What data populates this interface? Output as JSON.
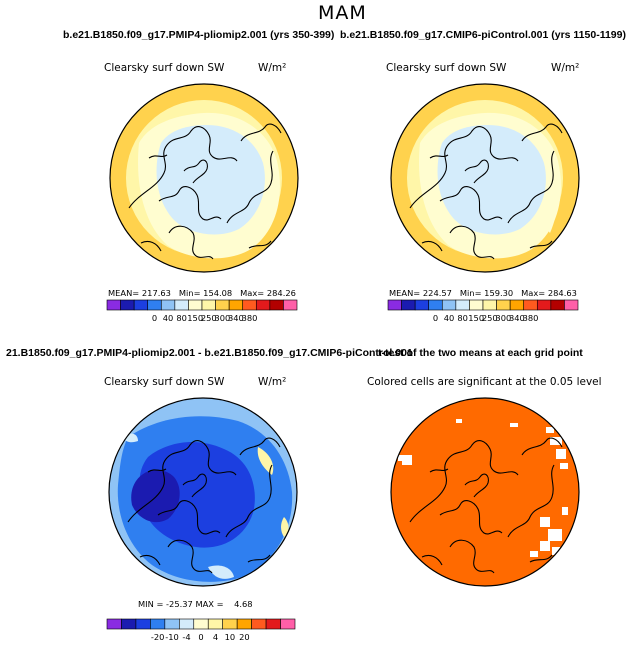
{
  "page": {
    "title": "MAM",
    "panel_titles": {
      "top_left": "b.e21.B1850.f09_g17.PMIP4-pliomip2.001 (yrs 350-399)",
      "top_right": "b.e21.B1850.f09_g17.CMIP6-piControl.001 (yrs 1150-1199)",
      "bottom_left": "21.B1850.f09_g17.PMIP4-pliomip2.001 - b.e21.B1850.f09_g17.CMIP6-piControl.001",
      "bottom_right": "t-test of the two means at each grid point"
    }
  },
  "chart_data": [
    {
      "id": "pliomip2",
      "type": "heatmap",
      "projection": "north polar stereographic",
      "title": "b.e21.B1850.f09_g17.PMIP4-pliomip2.001 (yrs 350-399)",
      "variable": "Clearsky surf down SW",
      "units": "W/m²",
      "stats": {
        "mean_label": "MEAN=",
        "mean": "217.63",
        "min_label": "Min=",
        "min": "154.08",
        "max_label": "Max=",
        "max": "284.26"
      },
      "colorbar": {
        "ticks": [
          "0",
          "40",
          "80",
          "150",
          "250",
          "300",
          "340",
          "380"
        ],
        "colors": [
          "#8a2be2",
          "#1b1bb0",
          "#1c3fe0",
          "#2f7ff0",
          "#8fc3f5",
          "#d4ecfb",
          "#fffdd0",
          "#fff6a8",
          "#ffd24d",
          "#ffa500",
          "#ff5a1f",
          "#e31a1c",
          "#b30000",
          "#ff5fa8"
        ]
      }
    },
    {
      "id": "picontrol",
      "type": "heatmap",
      "projection": "north polar stereographic",
      "title": "b.e21.B1850.f09_g17.CMIP6-piControl.001 (yrs 1150-1199)",
      "variable": "Clearsky surf down SW",
      "units": "W/m²",
      "stats": {
        "mean_label": "MEAN=",
        "mean": "224.57",
        "min_label": "Min=",
        "min": "159.30",
        "max_label": "Max=",
        "max": "284.63"
      },
      "colorbar": {
        "ticks": [
          "0",
          "40",
          "80",
          "150",
          "250",
          "300",
          "340",
          "380"
        ],
        "colors": [
          "#8a2be2",
          "#1b1bb0",
          "#1c3fe0",
          "#2f7ff0",
          "#8fc3f5",
          "#d4ecfb",
          "#fffdd0",
          "#fff6a8",
          "#ffd24d",
          "#ffa500",
          "#ff5a1f",
          "#e31a1c",
          "#b30000",
          "#ff5fa8"
        ]
      }
    },
    {
      "id": "difference",
      "type": "heatmap",
      "projection": "north polar stereographic",
      "title": "21.B1850.f09_g17.PMIP4-pliomip2.001 - b.e21.B1850.f09_g17.CMIP6-piControl.001",
      "variable": "Clearsky surf down SW",
      "units": "W/m²",
      "stats": {
        "min_label": "MIN =",
        "min": "-25.37",
        "max_label": "MAX =",
        "max": "4.68"
      },
      "colorbar": {
        "ticks": [
          "-20",
          "-10",
          "-4",
          "0",
          "4",
          "10",
          "20"
        ],
        "colors": [
          "#8a2be2",
          "#1b1bb0",
          "#1c3fe0",
          "#2f7ff0",
          "#8fc3f5",
          "#d4ecfb",
          "#fffdd0",
          "#fff6a8",
          "#ffd24d",
          "#ffa500",
          "#ff5a1f",
          "#e31a1c",
          "#ff5fa8"
        ]
      }
    },
    {
      "id": "ttest",
      "type": "heatmap",
      "projection": "north polar stereographic",
      "title": "t-test of the two means at each grid point",
      "caption": "Colored cells are significant at the 0.05 level",
      "significant_color": "#ff6a00"
    }
  ]
}
